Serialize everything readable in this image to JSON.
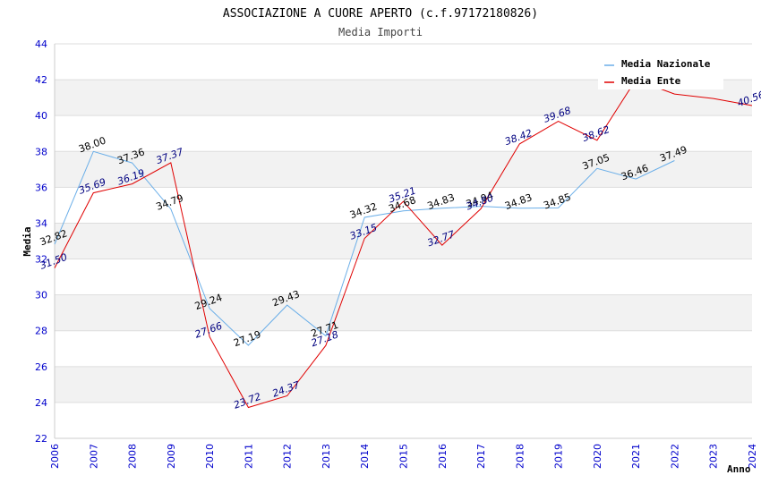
{
  "chart_data": {
    "type": "line",
    "title": "ASSOCIAZIONE A CUORE APERTO (c.f.97172180826)",
    "subtitle": "Media Importi",
    "xlabel": "Anno",
    "ylabel": "Media",
    "ylim": [
      22,
      44
    ],
    "yticks": [
      "22",
      "24",
      "26",
      "28",
      "30",
      "32",
      "34",
      "36",
      "38",
      "40",
      "42",
      "44"
    ],
    "categories": [
      "2006",
      "2007",
      "2008",
      "2009",
      "2010",
      "2011",
      "2012",
      "2013",
      "2014",
      "2015",
      "2016",
      "2017",
      "2018",
      "2019",
      "2020",
      "2021",
      "2022",
      "2023",
      "2024"
    ],
    "grid": true,
    "legend_position": "top-right",
    "series": [
      {
        "name": "Media Nazionale",
        "color": "#6aaee8",
        "values": [
          32.82,
          38.0,
          37.36,
          34.79,
          29.24,
          27.19,
          29.43,
          27.71,
          34.32,
          34.68,
          34.83,
          34.94,
          34.83,
          34.85,
          37.05,
          36.46,
          37.49,
          null,
          null
        ],
        "labels": [
          "32.82",
          "38.00",
          "37.36",
          "34.79",
          "29.24",
          "27.19",
          "29.43",
          "27.71",
          "34.32",
          "34.68",
          "34.83",
          "34.94",
          "34.83",
          "34.85",
          "37.05",
          "36.46",
          "37.49",
          "",
          ""
        ]
      },
      {
        "name": "Media Ente",
        "color": "#e00000",
        "values": [
          31.5,
          35.69,
          36.19,
          37.37,
          27.66,
          23.72,
          24.37,
          27.18,
          33.15,
          35.21,
          32.77,
          34.8,
          38.42,
          39.68,
          38.62,
          42.0,
          41.2,
          40.95,
          40.56
        ],
        "labels": [
          "31.50",
          "35.69",
          "36.19",
          "37.37",
          "27.66",
          "23.72",
          "24.37",
          "27.18",
          "33.15",
          "35.21",
          "32.77",
          "34.80",
          "38.42",
          "39.68",
          "38.62",
          "",
          "",
          "",
          "40.56"
        ]
      }
    ]
  }
}
